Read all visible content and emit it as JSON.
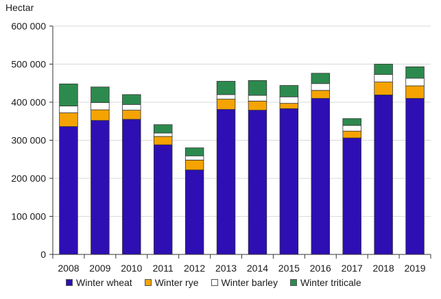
{
  "chart_data": {
    "type": "bar",
    "stacked": true,
    "title": "",
    "ylabel": "Hectar",
    "xlabel": "",
    "ylim": [
      0,
      600000
    ],
    "yticks": [
      0,
      100000,
      200000,
      300000,
      400000,
      500000,
      600000
    ],
    "ytick_labels": [
      "0",
      "100 000",
      "200 000",
      "300 000",
      "400 000",
      "500 000",
      "600 000"
    ],
    "grid": true,
    "legend_position": "bottom",
    "categories": [
      "2008",
      "2009",
      "2010",
      "2011",
      "2012",
      "2013",
      "2014",
      "2015",
      "2016",
      "2017",
      "2018",
      "2019"
    ],
    "series": [
      {
        "name": "Winter wheat",
        "color": "#2e0fb3",
        "values": [
          336000,
          352000,
          355000,
          288000,
          222000,
          381000,
          379000,
          383000,
          410000,
          306000,
          419000,
          410000
        ]
      },
      {
        "name": "Winter rye",
        "color": "#f5a300",
        "values": [
          36000,
          28000,
          24000,
          22000,
          26000,
          27000,
          24000,
          14000,
          21000,
          18000,
          34000,
          33000
        ]
      },
      {
        "name": "Winter barley",
        "color": "#ffffff",
        "values": [
          18000,
          19000,
          15000,
          9000,
          11000,
          12000,
          15000,
          17000,
          18000,
          15000,
          20000,
          20000
        ]
      },
      {
        "name": "Winter triticale",
        "color": "#2d8a4e",
        "values": [
          58000,
          41000,
          26000,
          22000,
          21000,
          35000,
          39000,
          30000,
          27000,
          18000,
          27000,
          30000
        ]
      }
    ]
  }
}
